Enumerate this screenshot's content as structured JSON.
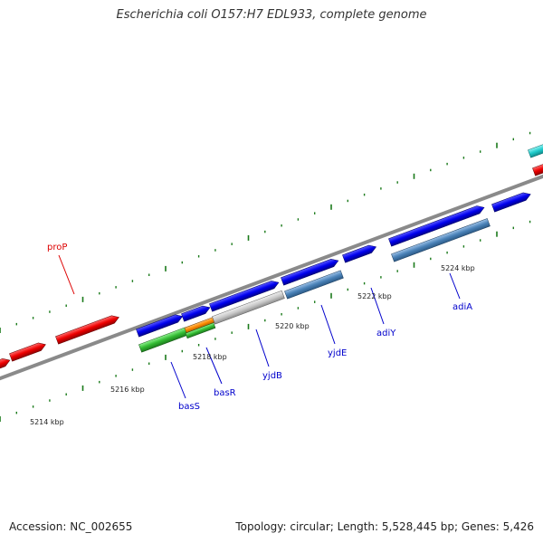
{
  "title": "Escherichia coli O157:H7 EDL933, complete genome",
  "footer": {
    "accession": "Accession: NC_002655",
    "summary": "Topology: circular; Length: 5,528,445 bp; Genes: 5,426"
  },
  "colors": {
    "backbone": "#808080",
    "tick": "#1a7a1a",
    "forward_gene": "#0000ee",
    "reverse_gene": "#ee0000",
    "label_forward": "#0000cc",
    "label_reverse": "#dd0000"
  },
  "scale_labels": [
    "5214 kbp",
    "5216 kbp",
    "5218 kbp",
    "5220 kbp",
    "5222 kbp",
    "5224 kbp"
  ],
  "gene_labels": [
    "proP",
    "basS",
    "basR",
    "yjdB",
    "yjdE",
    "adiY",
    "adiA"
  ]
}
